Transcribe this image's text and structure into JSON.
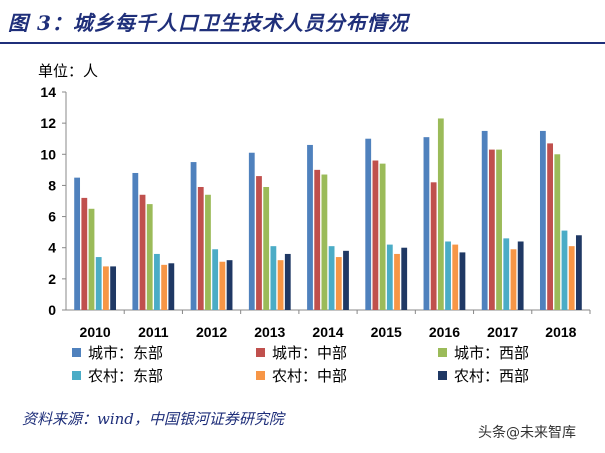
{
  "title": "图 3：城乡每千人口卫生技术人员分布情况",
  "unit_label": "单位：人",
  "source": "资料来源：wind，中国银河证券研究院",
  "watermark": "头条@未来智库",
  "chart_data": {
    "type": "bar",
    "categories": [
      "2010",
      "2011",
      "2012",
      "2013",
      "2014",
      "2015",
      "2016",
      "2017",
      "2018"
    ],
    "ylim": [
      0,
      14
    ],
    "yticks": [
      0,
      2,
      4,
      6,
      8,
      10,
      12,
      14
    ],
    "grid": false,
    "legend_position": "bottom",
    "series": [
      {
        "name": "城市：东部",
        "color": "#4f81bd",
        "values": [
          8.5,
          8.8,
          9.5,
          10.1,
          10.6,
          11.0,
          11.1,
          11.5,
          11.5
        ]
      },
      {
        "name": "城市：中部",
        "color": "#c0504d",
        "values": [
          7.2,
          7.4,
          7.9,
          8.6,
          9.0,
          9.6,
          8.2,
          10.3,
          10.7
        ]
      },
      {
        "name": "城市：西部",
        "color": "#9bbb59",
        "values": [
          6.5,
          6.8,
          7.4,
          7.9,
          8.7,
          9.4,
          12.3,
          10.3,
          10.0
        ]
      },
      {
        "name": "农村：东部",
        "color": "#4bacc6",
        "values": [
          3.4,
          3.6,
          3.9,
          4.1,
          4.1,
          4.2,
          4.4,
          4.6,
          5.1
        ]
      },
      {
        "name": "农村：中部",
        "color": "#f79646",
        "values": [
          2.8,
          2.9,
          3.1,
          3.2,
          3.4,
          3.6,
          4.2,
          3.9,
          4.1
        ]
      },
      {
        "name": "农村：西部",
        "color": "#1f3864",
        "values": [
          2.8,
          3.0,
          3.2,
          3.6,
          3.8,
          4.0,
          3.7,
          4.4,
          4.8
        ]
      }
    ]
  }
}
